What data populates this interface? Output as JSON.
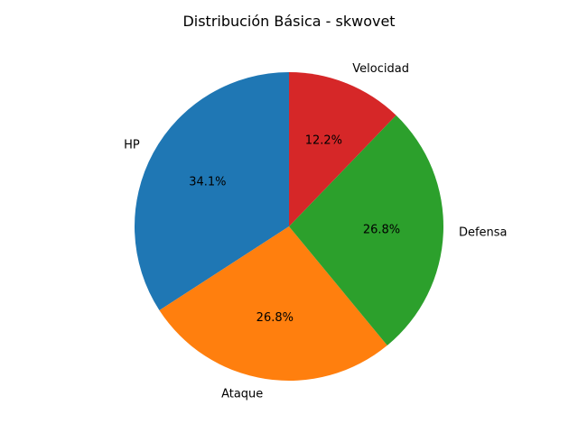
{
  "chart_data": {
    "type": "pie",
    "title": "Distribución Básica - skwovet",
    "categories": [
      "HP",
      "Ataque",
      "Defensa",
      "Velocidad"
    ],
    "values": [
      70,
      55,
      55,
      25
    ],
    "percent_labels": [
      "34.1%",
      "26.8%",
      "26.8%",
      "12.2%"
    ],
    "colors": [
      "#1f77b4",
      "#ff7f0e",
      "#2ca02c",
      "#d62728"
    ],
    "start_angle_deg": 90,
    "direction": "counterclockwise"
  }
}
